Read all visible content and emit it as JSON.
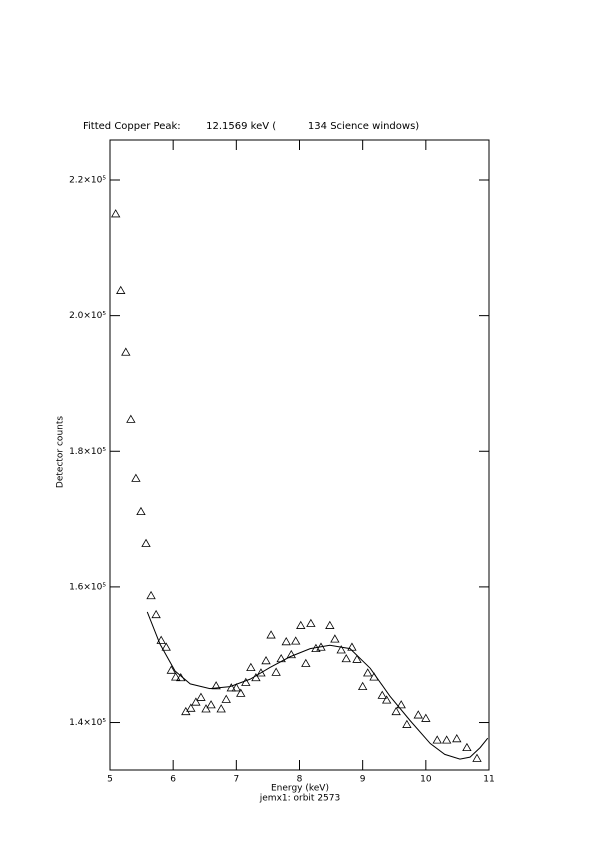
{
  "chart_data": {
    "type": "scatter",
    "title": "Fitted Copper Peak:        12.1569 keV (          134 Science windows)",
    "x_label": "Energy (keV)",
    "y_label": "Detector counts",
    "subtitle": "jemx1: orbit 2573",
    "xlim": [
      5,
      11
    ],
    "xticks": [
      5,
      6,
      7,
      8,
      9,
      10,
      11
    ],
    "ylim": [
      133000,
      225900
    ],
    "yticks": [
      {
        "value": 140000,
        "label": "1.4×10⁵"
      },
      {
        "value": 160000,
        "label": "1.6×10⁵"
      },
      {
        "value": 180000,
        "label": "1.8×10⁵"
      },
      {
        "value": 200000,
        "label": "2.0×10⁵"
      },
      {
        "value": 220000,
        "label": "2.2×10⁵"
      }
    ],
    "series": [
      {
        "type": "scatter",
        "color": "#000000",
        "x": [
          5.09,
          5.17,
          5.25,
          5.33,
          5.41,
          5.49,
          5.57,
          5.65,
          5.73,
          5.81,
          5.89,
          5.97,
          6.04,
          6.12,
          6.2,
          6.28,
          6.36,
          6.44,
          6.52,
          6.6,
          6.68,
          6.76,
          6.84,
          6.92,
          7.0,
          7.07,
          7.15,
          7.23,
          7.31,
          7.39,
          7.47,
          7.55,
          7.63,
          7.71,
          7.79,
          7.87,
          7.94,
          8.02,
          8.1,
          8.18,
          8.26,
          8.34,
          8.48,
          8.56,
          8.66,
          8.74,
          8.83,
          8.91,
          9.0,
          9.08,
          9.18,
          9.31,
          9.38,
          9.53,
          9.61,
          9.7,
          9.88,
          10.0,
          10.18,
          10.33,
          10.49,
          10.65,
          10.81
        ],
        "values": [
          215000,
          203700,
          194600,
          184700,
          176000,
          171100,
          166400,
          158700,
          155900,
          152100,
          151100,
          147700,
          146700,
          146600,
          141600,
          142100,
          143000,
          143700,
          142000,
          142600,
          145400,
          142000,
          143400,
          145100,
          145100,
          144300,
          145900,
          148100,
          146600,
          147300,
          149100,
          152900,
          147400,
          149400,
          151900,
          150000,
          152000,
          154300,
          148700,
          154600,
          150900,
          151100,
          154300,
          152300,
          150700,
          149400,
          151100,
          149300,
          145300,
          147300,
          146700,
          144000,
          143300,
          141600,
          142600,
          139700,
          141100,
          140600,
          137400,
          137400,
          137600,
          136300,
          134700
        ]
      },
      {
        "type": "line",
        "color": "#000000",
        "x": [
          5.59,
          5.79,
          6.03,
          6.27,
          6.58,
          6.9,
          7.22,
          7.53,
          7.85,
          8.17,
          8.48,
          8.8,
          9.12,
          9.43,
          9.75,
          10.07,
          10.3,
          10.54,
          10.7,
          10.86,
          10.98
        ],
        "values": [
          156300,
          151600,
          147600,
          145700,
          145000,
          145300,
          146400,
          148100,
          149700,
          150900,
          151400,
          150900,
          148000,
          143900,
          140300,
          136900,
          135300,
          134600,
          134900,
          136300,
          137700
        ]
      }
    ]
  }
}
